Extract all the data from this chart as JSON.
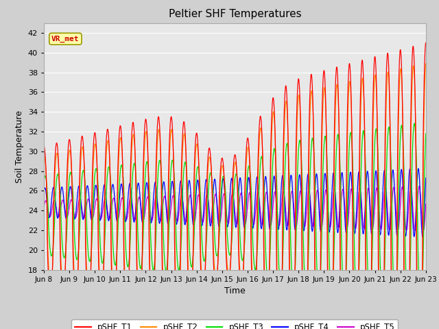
{
  "title": "Peltier SHF Temperatures",
  "xlabel": "Time",
  "ylabel": "Soil Temperature",
  "ylim": [
    18,
    43
  ],
  "yticks": [
    18,
    20,
    22,
    24,
    26,
    28,
    30,
    32,
    34,
    36,
    38,
    40,
    42
  ],
  "xlim_start": 0,
  "xlim_end": 15,
  "xtick_labels": [
    "Jun 8",
    "Jun 9",
    "Jun 10",
    "Jun 11",
    "Jun 12",
    "Jun 13",
    "Jun 14",
    "Jun 15",
    "Jun 16",
    "Jun 17",
    "Jun 18",
    "Jun 19",
    "Jun 20",
    "Jun 21",
    "Jun 22",
    "Jun 23"
  ],
  "colors": {
    "T1": "#ff0000",
    "T2": "#ff8800",
    "T3": "#00dd00",
    "T4": "#0000ff",
    "T5": "#cc00cc"
  },
  "annotation_text": "VR_met",
  "annotation_color": "#cc0000",
  "annotation_bg": "#ffffaa",
  "annotation_border": "#999900",
  "bg_color": "#e8e8e8",
  "grid_color": "#ffffff",
  "legend_entries": [
    "pSHF_T1",
    "pSHF_T2",
    "pSHF_T3",
    "pSHF_T4",
    "pSHF_T5"
  ],
  "fig_width": 6.4,
  "fig_height": 4.8,
  "dpi": 100
}
